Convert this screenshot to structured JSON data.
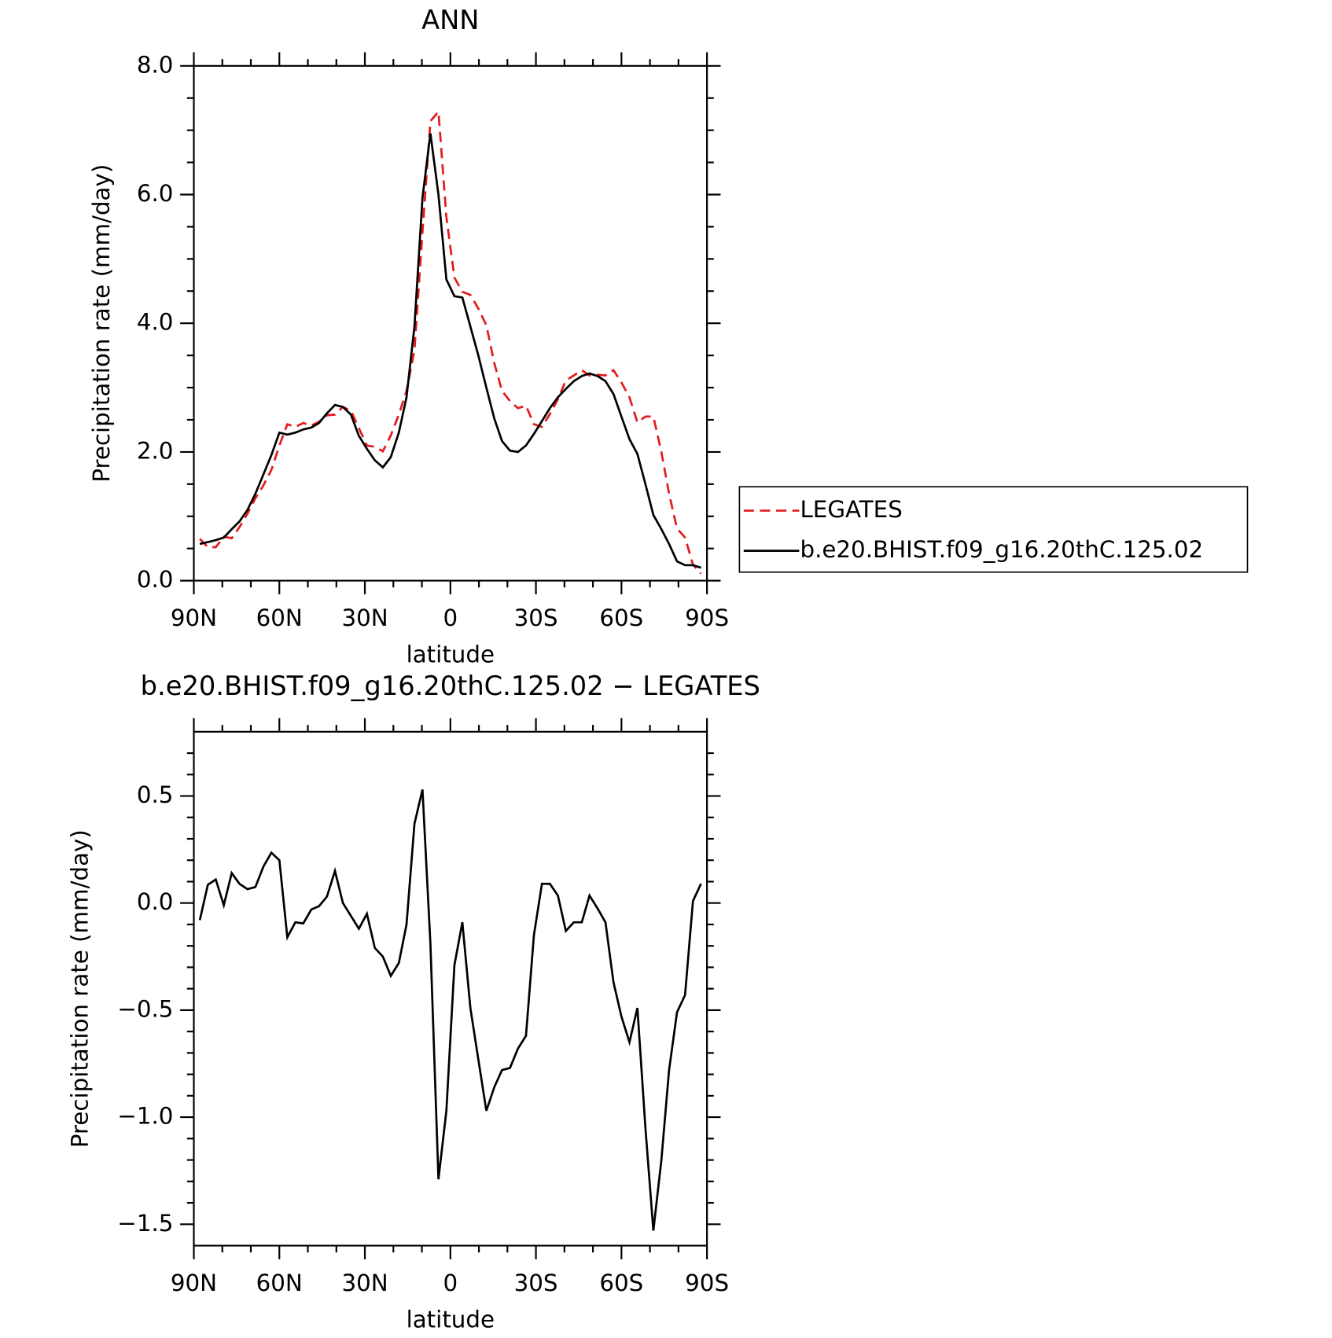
{
  "chart_data": [
    {
      "type": "line",
      "title": "ANN",
      "xlabel": "latitude",
      "ylabel": "Precipitation rate (mm/day)",
      "xlim": [
        90,
        -90
      ],
      "ylim": [
        0,
        8
      ],
      "xticks": [
        {
          "value": 90,
          "label": "90N"
        },
        {
          "value": 60,
          "label": "60N"
        },
        {
          "value": 30,
          "label": "30N"
        },
        0,
        {
          "value": -30,
          "label": "30S"
        },
        {
          "value": -60,
          "label": "60S"
        },
        {
          "value": -90,
          "label": "90S"
        }
      ],
      "xminorticks": [
        80,
        70,
        50,
        40,
        20,
        10,
        -10,
        -20,
        -40,
        -50,
        -70,
        -80
      ],
      "yticks": [
        {
          "value": 0,
          "label": "0.0"
        },
        {
          "value": 2,
          "label": "2.0"
        },
        {
          "value": 4,
          "label": "4.0"
        },
        {
          "value": 6,
          "label": "6.0"
        },
        {
          "value": 8,
          "label": "8.0"
        }
      ],
      "yminorticks": [
        0.5,
        1,
        1.5,
        2.5,
        3,
        3.5,
        4.5,
        5,
        5.5,
        6.5,
        7,
        7.5
      ],
      "legend": "right",
      "x": [
        87.9,
        85.1,
        82.3,
        79.5,
        76.7,
        74.0,
        71.2,
        68.4,
        65.6,
        62.8,
        60.0,
        57.2,
        54.4,
        51.6,
        48.8,
        46.1,
        43.3,
        40.5,
        37.7,
        34.9,
        32.1,
        29.3,
        26.5,
        23.7,
        20.9,
        18.1,
        15.4,
        12.6,
        9.8,
        7.0,
        4.2,
        1.4,
        -1.4,
        -4.2,
        -7.0,
        -9.8,
        -12.6,
        -15.4,
        -18.1,
        -20.9,
        -23.7,
        -26.5,
        -29.3,
        -32.1,
        -34.9,
        -37.7,
        -40.5,
        -43.3,
        -46.1,
        -48.8,
        -51.6,
        -54.4,
        -57.2,
        -60.0,
        -62.8,
        -65.6,
        -68.4,
        -71.2,
        -74.0,
        -76.7,
        -79.5,
        -82.3,
        -85.1,
        -87.9
      ],
      "series": [
        {
          "name": "LEGATES",
          "color": "#e41a1c",
          "dashed": true,
          "values": [
            0.65,
            0.52,
            0.52,
            0.68,
            0.66,
            0.83,
            1.04,
            1.28,
            1.48,
            1.72,
            2.1,
            2.43,
            2.39,
            2.45,
            2.41,
            2.47,
            2.57,
            2.58,
            2.7,
            2.64,
            2.37,
            2.1,
            2.08,
            2.01,
            2.26,
            2.58,
            2.95,
            3.58,
            5.42,
            7.14,
            7.29,
            5.65,
            4.71,
            4.49,
            4.44,
            4.23,
            3.97,
            3.38,
            2.95,
            2.79,
            2.68,
            2.72,
            2.43,
            2.39,
            2.59,
            2.82,
            3.11,
            3.19,
            3.27,
            3.19,
            3.2,
            3.19,
            3.27,
            3.08,
            2.85,
            2.46,
            2.55,
            2.55,
            2.0,
            1.35,
            0.81,
            0.67,
            0.25,
            0.11
          ]
        },
        {
          "name": "b.e20.BHIST.f09_g16.20thC.125.02",
          "color": "#000000",
          "dashed": false,
          "values": [
            0.57,
            0.6,
            0.63,
            0.67,
            0.8,
            0.92,
            1.1,
            1.35,
            1.65,
            1.95,
            2.3,
            2.27,
            2.3,
            2.35,
            2.38,
            2.45,
            2.6,
            2.73,
            2.7,
            2.58,
            2.25,
            2.05,
            1.87,
            1.76,
            1.92,
            2.3,
            2.85,
            3.95,
            5.95,
            6.95,
            6.0,
            4.68,
            4.42,
            4.4,
            3.95,
            3.5,
            3.0,
            2.52,
            2.17,
            2.02,
            2.0,
            2.1,
            2.28,
            2.48,
            2.68,
            2.85,
            2.98,
            3.1,
            3.18,
            3.22,
            3.18,
            3.1,
            2.9,
            2.55,
            2.2,
            1.97,
            1.5,
            1.02,
            0.8,
            0.57,
            0.3,
            0.24,
            0.24,
            0.2
          ]
        }
      ]
    },
    {
      "type": "line",
      "title": "b.e20.BHIST.f09_g16.20thC.125.02 − LEGATES",
      "xlabel": "latitude",
      "ylabel": "Precipitation rate (mm/day)",
      "xlim": [
        90,
        -90
      ],
      "ylim": [
        -1.6,
        0.8
      ],
      "xticks": [
        {
          "value": 90,
          "label": "90N"
        },
        {
          "value": 60,
          "label": "60N"
        },
        {
          "value": 30,
          "label": "30N"
        },
        0,
        {
          "value": -30,
          "label": "30S"
        },
        {
          "value": -60,
          "label": "60S"
        },
        {
          "value": -90,
          "label": "90S"
        }
      ],
      "xminorticks": [
        80,
        70,
        50,
        40,
        20,
        10,
        -10,
        -20,
        -40,
        -50,
        -70,
        -80
      ],
      "yticks": [
        {
          "value": -1.5,
          "label": "−1.5"
        },
        {
          "value": -1,
          "label": "−1.0"
        },
        {
          "value": -0.5,
          "label": "−0.5"
        },
        {
          "value": 0,
          "label": "0.0"
        },
        0.5
      ],
      "yminorticks": [
        -1.4,
        -1.3,
        -1.2,
        -1.1,
        -0.9,
        -0.8,
        -0.7,
        -0.6,
        -0.4,
        -0.3,
        -0.2,
        -0.1,
        0.1,
        0.2,
        0.3,
        0.4,
        0.6,
        0.7
      ],
      "x": [
        87.9,
        85.1,
        82.3,
        79.5,
        76.7,
        74.0,
        71.2,
        68.4,
        65.6,
        62.8,
        60.0,
        57.2,
        54.4,
        51.6,
        48.8,
        46.1,
        43.3,
        40.5,
        37.7,
        34.9,
        32.1,
        29.3,
        26.5,
        23.7,
        20.9,
        18.1,
        15.4,
        12.6,
        9.8,
        7.0,
        4.2,
        1.4,
        -1.4,
        -4.2,
        -7.0,
        -9.8,
        -12.6,
        -15.4,
        -18.1,
        -20.9,
        -23.7,
        -26.5,
        -29.3,
        -32.1,
        -34.9,
        -37.7,
        -40.5,
        -43.3,
        -46.1,
        -48.8,
        -51.6,
        -54.4,
        -57.2,
        -60.0,
        -62.8,
        -65.6,
        -68.4,
        -71.2,
        -74.0,
        -76.7,
        -79.5,
        -82.3,
        -85.1,
        -87.9
      ],
      "series": [
        {
          "color": "#000000",
          "dashed": false,
          "values": [
            -0.08,
            0.085,
            0.11,
            -0.01,
            0.14,
            0.09,
            0.065,
            0.075,
            0.17,
            0.235,
            0.2,
            -0.16,
            -0.09,
            -0.095,
            -0.03,
            -0.015,
            0.03,
            0.15,
            0,
            -0.06,
            -0.12,
            -0.05,
            -0.21,
            -0.25,
            -0.34,
            -0.28,
            -0.1,
            0.37,
            0.53,
            -0.19,
            -1.29,
            -0.97,
            -0.29,
            -0.09,
            -0.49,
            -0.73,
            -0.97,
            -0.86,
            -0.78,
            -0.77,
            -0.68,
            -0.62,
            -0.15,
            0.09,
            0.09,
            0.035,
            -0.13,
            -0.09,
            -0.09,
            0.035,
            -0.025,
            -0.09,
            -0.37,
            -0.53,
            -0.65,
            -0.49,
            -1.05,
            -1.53,
            -1.2,
            -0.78,
            -0.51,
            -0.43,
            0.01,
            0.09
          ]
        }
      ]
    }
  ]
}
